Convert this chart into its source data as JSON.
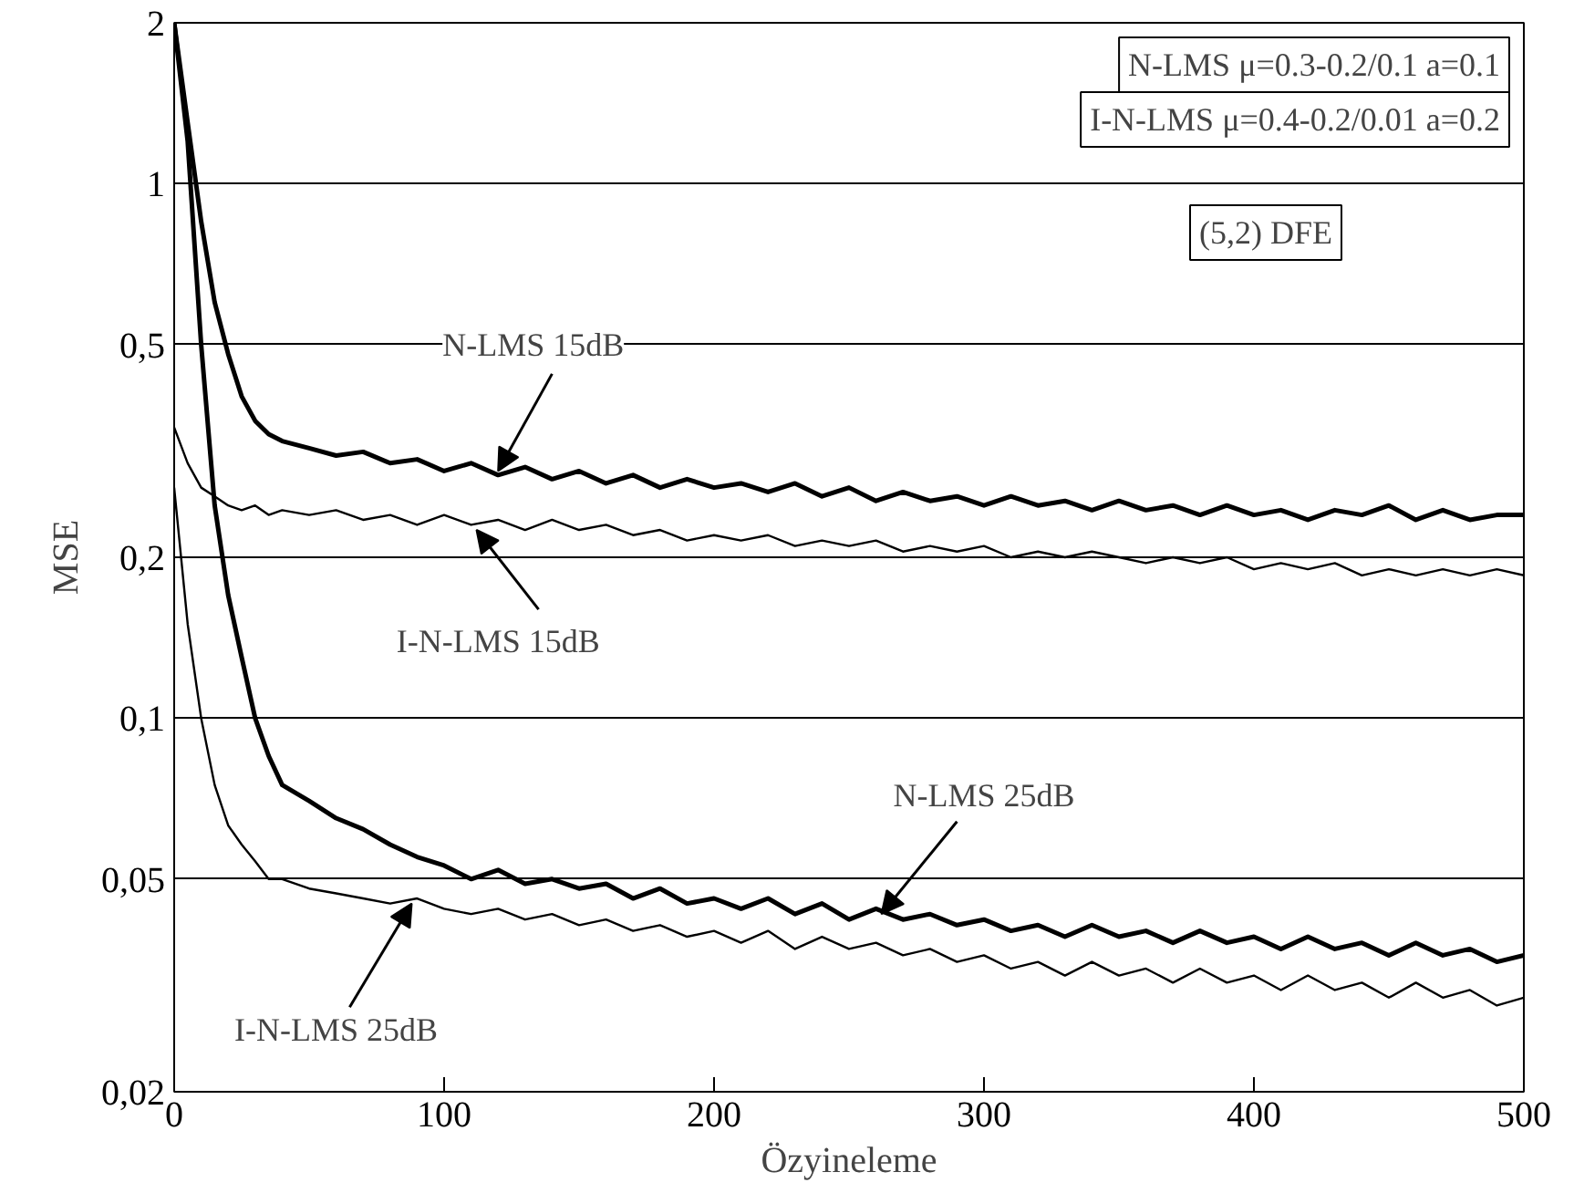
{
  "chart_data": {
    "type": "line",
    "xlabel": "Özyineleme",
    "ylabel": "MSE",
    "log": "y",
    "grid": "y",
    "line_style": "solid",
    "x": [
      0,
      5,
      10,
      15,
      20,
      25,
      30,
      35,
      40,
      50,
      60,
      70,
      80,
      90,
      100,
      110,
      120,
      130,
      140,
      150,
      160,
      170,
      180,
      190,
      200,
      210,
      220,
      230,
      240,
      250,
      260,
      270,
      280,
      290,
      300,
      310,
      320,
      330,
      340,
      350,
      360,
      370,
      380,
      390,
      400,
      410,
      420,
      430,
      440,
      450,
      460,
      470,
      480,
      490,
      500
    ],
    "xlim": [
      0,
      500
    ],
    "xticks": [
      0,
      100,
      200,
      300,
      400,
      500
    ],
    "ylim": [
      0.02,
      2
    ],
    "yticks": [
      {
        "value": 0.02,
        "label": "0,02"
      },
      {
        "value": 0.05,
        "label": "0,05"
      },
      {
        "value": 0.1,
        "label": "0,1"
      },
      {
        "value": 0.2,
        "label": "0,2"
      },
      {
        "value": 0.5,
        "label": "0,5"
      },
      1,
      2
    ],
    "series": [
      {
        "color": "#000000",
        "values": [
          2,
          1.3,
          0.85,
          0.6,
          0.48,
          0.4,
          0.36,
          0.34,
          0.33,
          0.32,
          0.31,
          0.315,
          0.3,
          0.305,
          0.29,
          0.3,
          0.285,
          0.295,
          0.28,
          0.29,
          0.275,
          0.285,
          0.27,
          0.28,
          0.27,
          0.275,
          0.265,
          0.275,
          0.26,
          0.27,
          0.255,
          0.265,
          0.255,
          0.26,
          0.25,
          0.26,
          0.25,
          0.255,
          0.245,
          0.255,
          0.245,
          0.25,
          0.24,
          0.25,
          0.24,
          0.245,
          0.235,
          0.245,
          0.24,
          0.25,
          0.235,
          0.245,
          0.235,
          0.24,
          0.24
        ]
      },
      {
        "color": "#000000",
        "values": [
          0.35,
          0.3,
          0.27,
          0.26,
          0.25,
          0.245,
          0.25,
          0.24,
          0.245,
          0.24,
          0.245,
          0.235,
          0.24,
          0.23,
          0.24,
          0.23,
          0.235,
          0.225,
          0.235,
          0.225,
          0.23,
          0.22,
          0.225,
          0.215,
          0.22,
          0.215,
          0.22,
          0.21,
          0.215,
          0.21,
          0.215,
          0.205,
          0.21,
          0.205,
          0.21,
          0.2,
          0.205,
          0.2,
          0.205,
          0.2,
          0.195,
          0.2,
          0.195,
          0.2,
          0.19,
          0.195,
          0.19,
          0.195,
          0.185,
          0.19,
          0.185,
          0.19,
          0.185,
          0.19,
          0.185
        ]
      },
      {
        "color": "#000000",
        "values": [
          2,
          1.2,
          0.5,
          0.25,
          0.17,
          0.13,
          0.1,
          0.085,
          0.075,
          0.07,
          0.065,
          0.062,
          0.058,
          0.055,
          0.053,
          0.05,
          0.052,
          0.049,
          0.05,
          0.048,
          0.049,
          0.046,
          0.048,
          0.045,
          0.046,
          0.044,
          0.046,
          0.043,
          0.045,
          0.042,
          0.044,
          0.042,
          0.043,
          0.041,
          0.042,
          0.04,
          0.041,
          0.039,
          0.041,
          0.039,
          0.04,
          0.038,
          0.04,
          0.038,
          0.039,
          0.037,
          0.039,
          0.037,
          0.038,
          0.036,
          0.038,
          0.036,
          0.037,
          0.035,
          0.036
        ]
      },
      {
        "color": "#000000",
        "values": [
          0.27,
          0.15,
          0.1,
          0.075,
          0.063,
          0.058,
          0.054,
          0.05,
          0.05,
          0.048,
          0.047,
          0.046,
          0.045,
          0.046,
          0.044,
          0.043,
          0.044,
          0.042,
          0.043,
          0.041,
          0.042,
          0.04,
          0.041,
          0.039,
          0.04,
          0.038,
          0.04,
          0.037,
          0.039,
          0.037,
          0.038,
          0.036,
          0.037,
          0.035,
          0.036,
          0.034,
          0.035,
          0.033,
          0.035,
          0.033,
          0.034,
          0.032,
          0.034,
          0.032,
          0.033,
          0.031,
          0.033,
          0.031,
          0.032,
          0.03,
          0.032,
          0.03,
          0.031,
          0.029,
          0.03
        ]
      }
    ],
    "annotations": [
      "N-LMS μ=0.3-0.2/0.1 a=0.1",
      "I-N-LMS μ=0.4-0.2/0.01 a=0.2",
      "(5,2) DFE",
      {
        "text": "N-LMS 15dB",
        "x": 120,
        "y": 0.29
      },
      {
        "text": "I-N-LMS 15dB",
        "x": 112,
        "y": 0.225
      },
      {
        "text": "N-LMS 25dB",
        "x": 262,
        "y": 0.043
      },
      {
        "text": "I-N-LMS 25dB",
        "x": 88,
        "y": 0.045
      }
    ]
  }
}
